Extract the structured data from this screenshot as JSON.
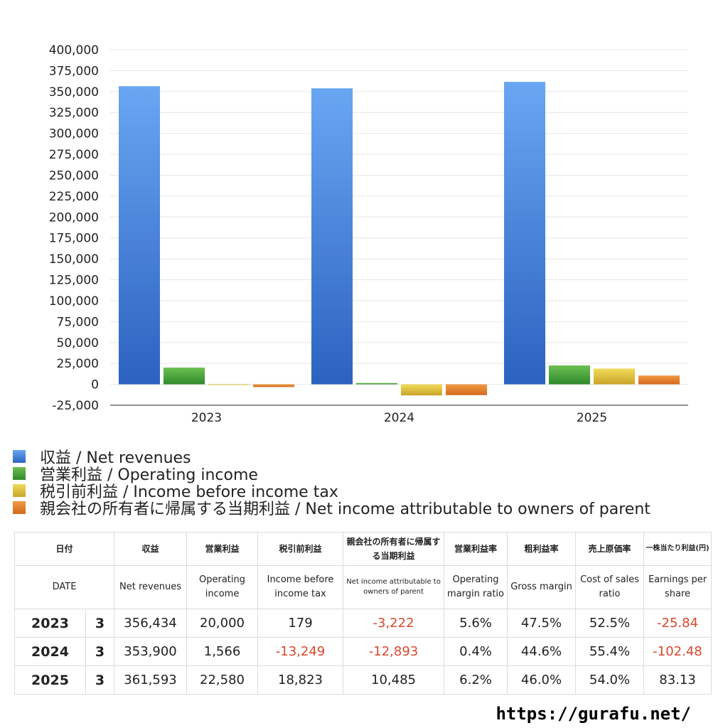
{
  "chart_data": {
    "type": "bar",
    "categories": [
      "2023",
      "2024",
      "2025"
    ],
    "series": [
      {
        "name": "収益 / Net revenues",
        "color_top": "#69a6f2",
        "color_bottom": "#2c62c0",
        "values": [
          356434,
          353900,
          361593
        ]
      },
      {
        "name": "営業利益 / Operating income",
        "color_top": "#6cbf52",
        "color_bottom": "#2f8a2c",
        "values": [
          20000,
          1566,
          22580
        ]
      },
      {
        "name": "税引前利益 / Income before income tax",
        "color_top": "#f1db5c",
        "color_bottom": "#c9a428",
        "values": [
          179,
          -13249,
          18823
        ]
      },
      {
        "name": "親会社の所有者に帰属する当期利益 / Net income attributable to owners of parent",
        "color_top": "#f09a43",
        "color_bottom": "#d4691e",
        "values": [
          -3222,
          -12893,
          10485
        ]
      }
    ],
    "ylim": [
      -25000,
      400000
    ],
    "ytick_step": 25000,
    "yticks": [
      "400,000",
      "375,000",
      "350,000",
      "325,000",
      "300,000",
      "275,000",
      "250,000",
      "225,000",
      "200,000",
      "175,000",
      "150,000",
      "125,000",
      "100,000",
      "75,000",
      "50,000",
      "25,000",
      "0",
      "-25,000"
    ],
    "grid": true,
    "legend_placement": "bottom"
  },
  "table": {
    "headers_jp": [
      "日付",
      "",
      "収益",
      "営業利益",
      "税引前利益",
      "親会社の所有者に帰属する当期利益",
      "営業利益率",
      "粗利益率",
      "売上原価率",
      "一株当たり利益(円)"
    ],
    "headers_en": [
      "DATE",
      "",
      "Net revenues",
      "Operating income",
      "Income before income tax",
      "Net income attributable to owners of parent",
      "Operating margin ratio",
      "Gross margin",
      "Cost of sales ratio",
      "Earnings per share"
    ],
    "rows": [
      {
        "year": "2023",
        "month": "3",
        "net_revenues": "356,434",
        "operating_income": "20,000",
        "income_before_tax": "179",
        "net_income_parent": "-3,222",
        "operating_margin": "5.6%",
        "gross_margin": "47.5%",
        "cost_of_sales": "52.5%",
        "eps": "-25.84"
      },
      {
        "year": "2024",
        "month": "3",
        "net_revenues": "353,900",
        "operating_income": "1,566",
        "income_before_tax": "-13,249",
        "net_income_parent": "-12,893",
        "operating_margin": "0.4%",
        "gross_margin": "44.6%",
        "cost_of_sales": "55.4%",
        "eps": "-102.48"
      },
      {
        "year": "2025",
        "month": "3",
        "net_revenues": "361,593",
        "operating_income": "22,580",
        "income_before_tax": "18,823",
        "net_income_parent": "10,485",
        "operating_margin": "6.2%",
        "gross_margin": "46.0%",
        "cost_of_sales": "54.0%",
        "eps": "83.13"
      }
    ]
  },
  "footer": {
    "url": "https://gurafu.net/"
  }
}
